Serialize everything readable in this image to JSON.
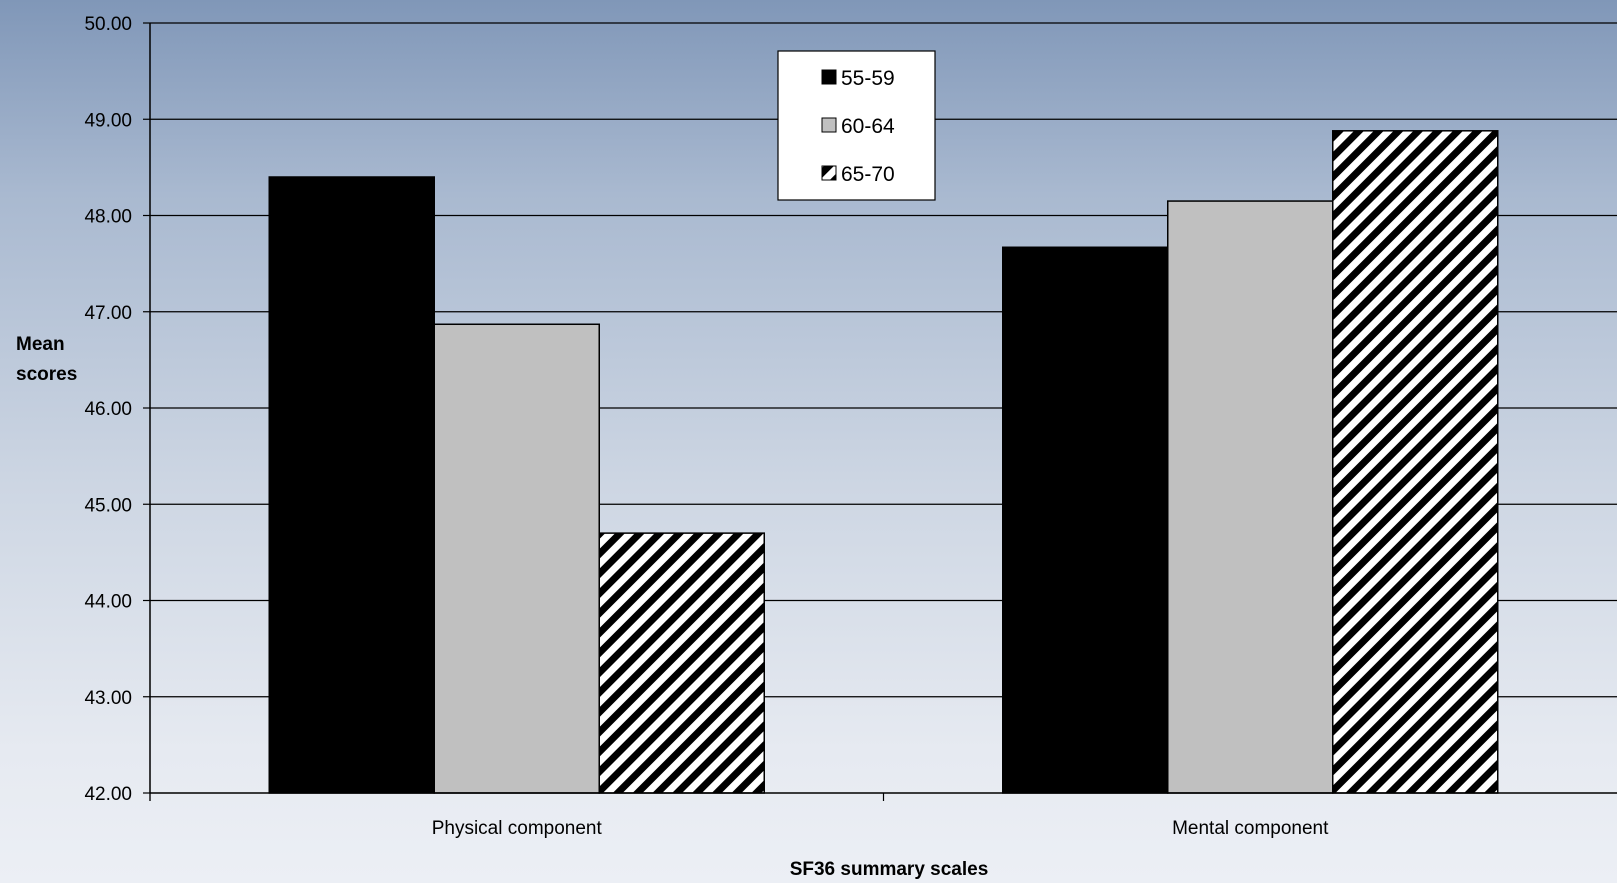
{
  "chart_data": {
    "type": "bar",
    "title": "",
    "xlabel": "SF36 summary scales",
    "ylabel": "Mean scores",
    "ylim": [
      42,
      50
    ],
    "yticks": [
      "42.00",
      "43.00",
      "44.00",
      "45.00",
      "46.00",
      "47.00",
      "48.00",
      "49.00",
      "50.00"
    ],
    "categories": [
      "Physical component",
      "Mental component"
    ],
    "series": [
      {
        "name": "55-59",
        "values": [
          48.4,
          47.67
        ],
        "color": "#000000",
        "pattern": "solid"
      },
      {
        "name": "60-64",
        "values": [
          46.87,
          48.15
        ],
        "color": "#c0c0c0",
        "pattern": "solid"
      },
      {
        "name": "65-70",
        "values": [
          44.7,
          48.88
        ],
        "color": "#ffffff",
        "pattern": "diagonal-stripes"
      }
    ],
    "grid": true,
    "legend_position": "top-center"
  }
}
